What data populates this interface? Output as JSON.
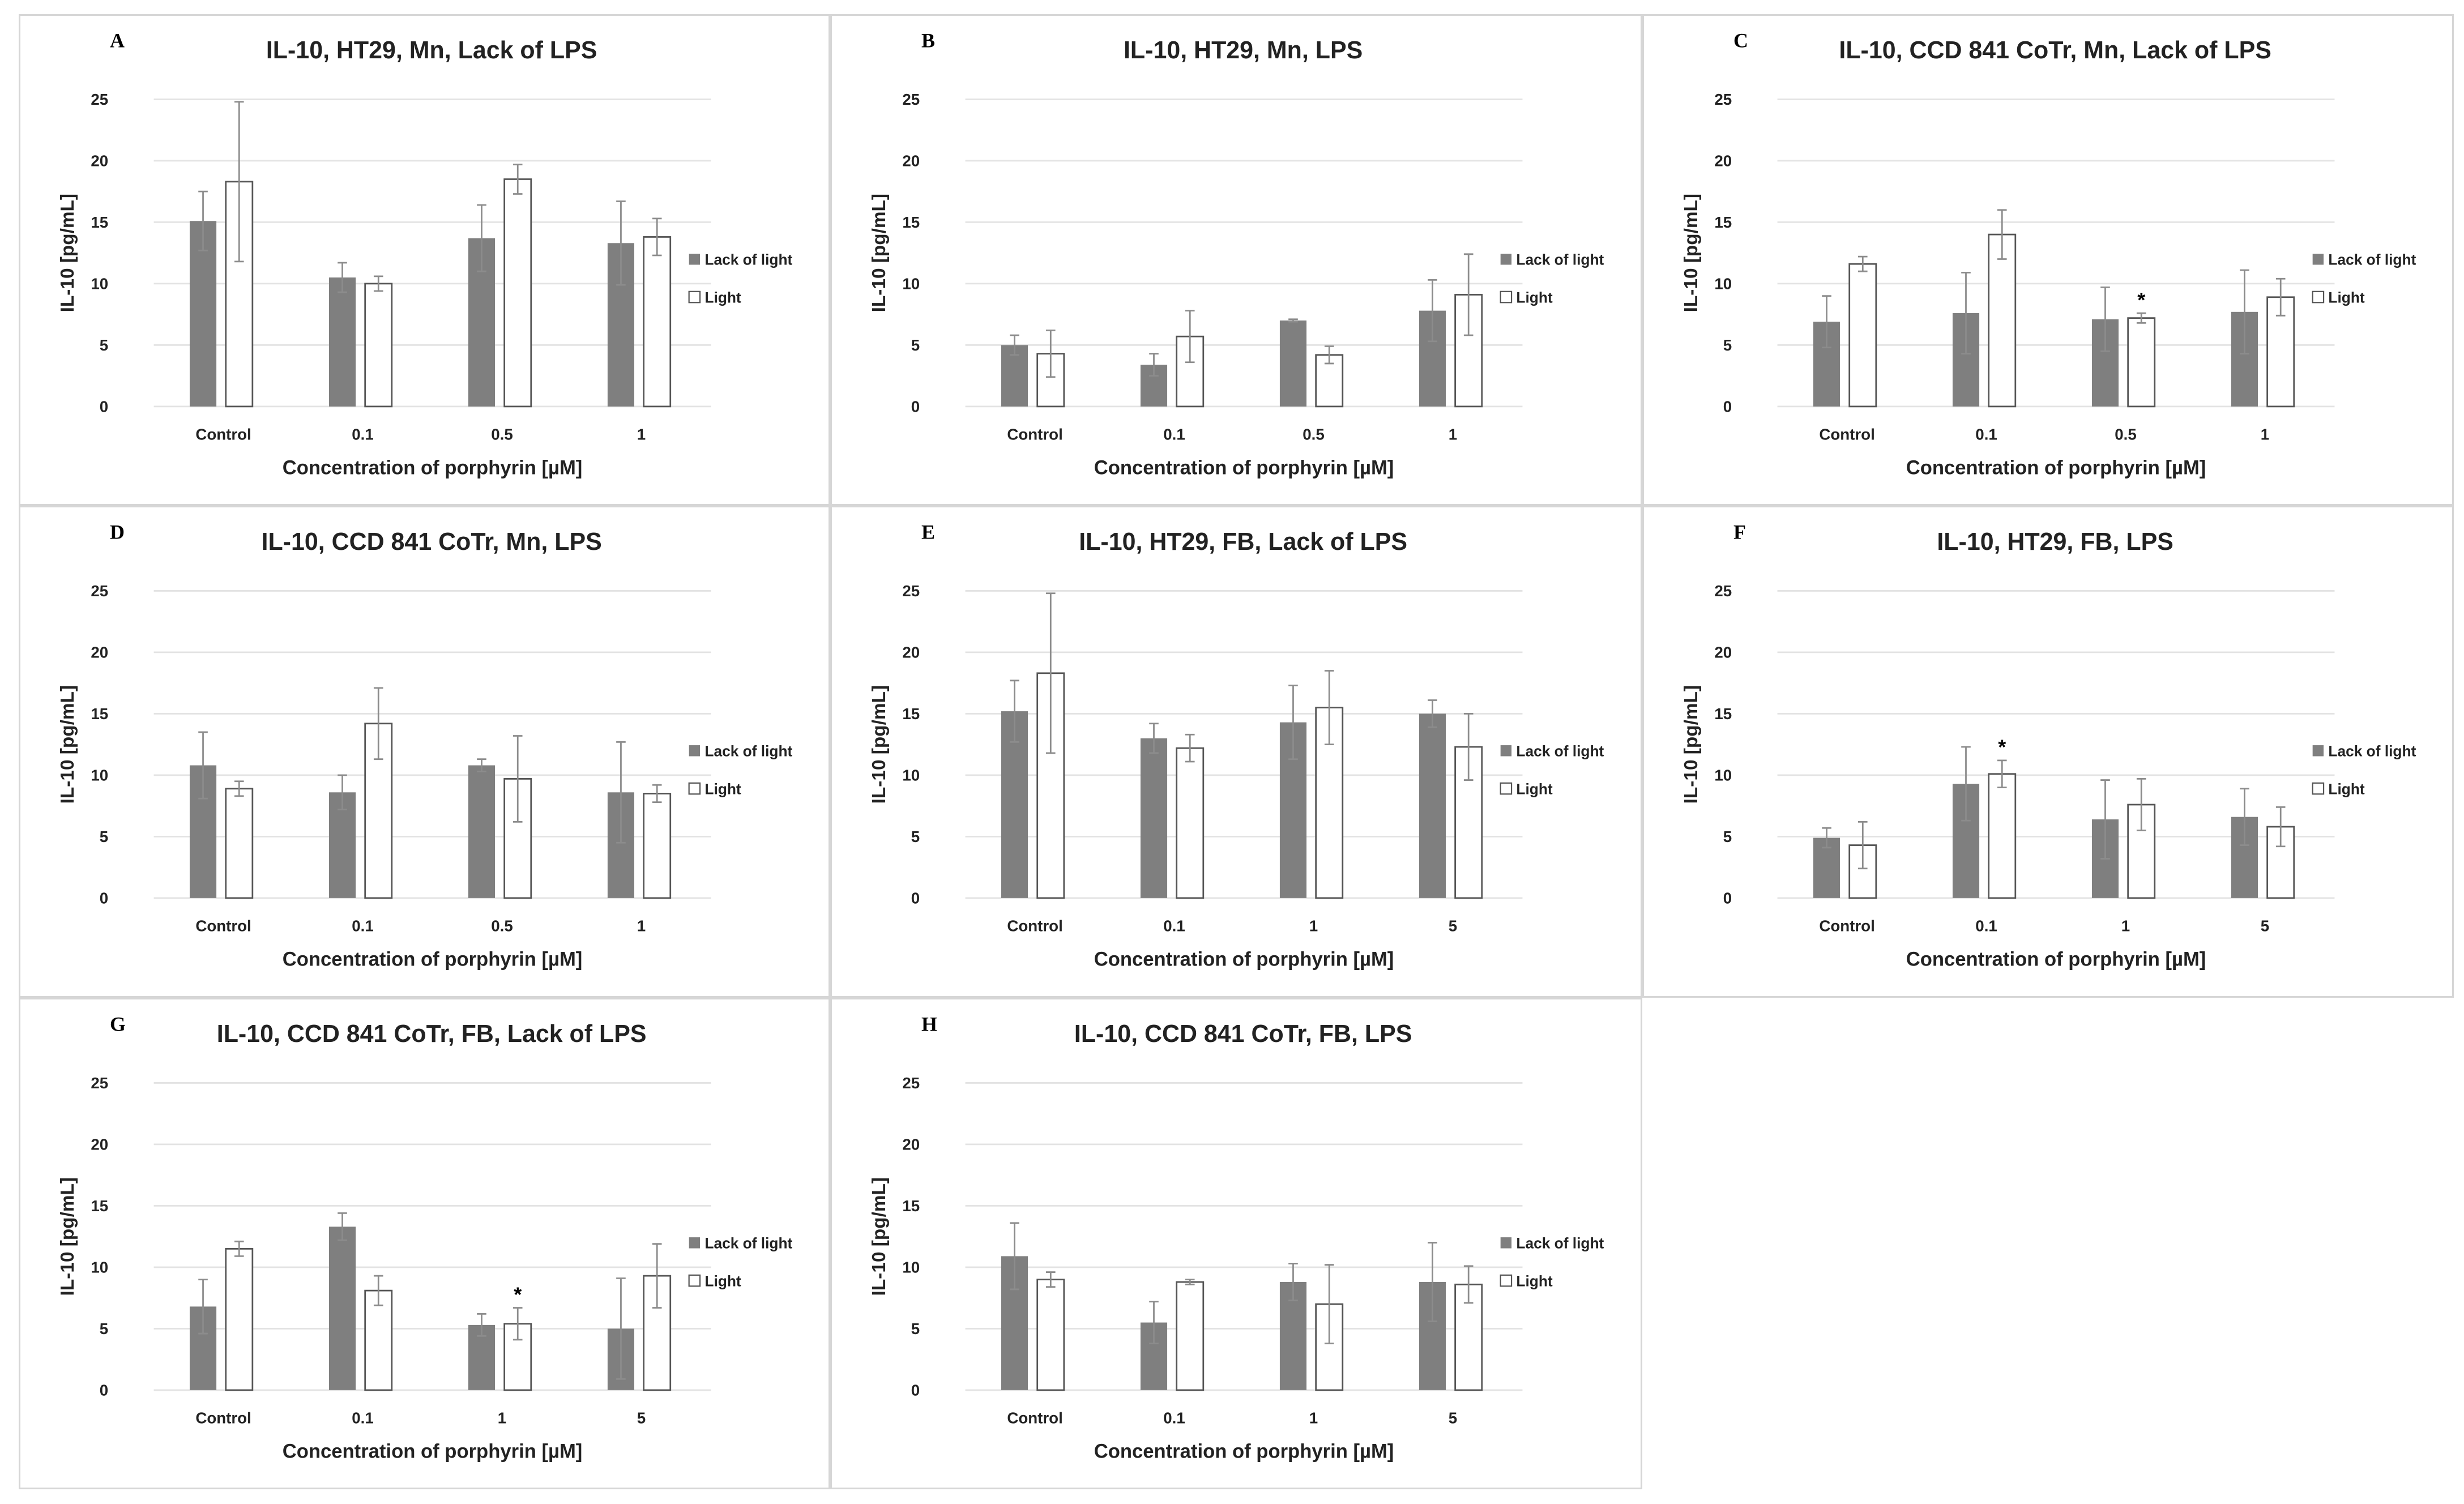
{
  "colors": {
    "lack": "#7f7f7f",
    "light": "#ffffff",
    "grid": "#e3e3e3",
    "err": "#8c8c8c"
  },
  "chart_data": [
    {
      "type": "bar",
      "letter": "A",
      "title": "IL-10, HT29, Mn, Lack of LPS",
      "xlabel": "Concentration of porphyrin [µM]",
      "ylabel": "IL-10 [pg/mL]",
      "ylim": [
        0,
        25
      ],
      "yticks": [
        0,
        5,
        10,
        15,
        20,
        25
      ],
      "categories": [
        "Control",
        "0.1",
        "0.5",
        "1"
      ],
      "series": [
        {
          "name": "Lack of light",
          "values": [
            15.1,
            10.5,
            13.7,
            13.3
          ],
          "errors": [
            2.4,
            1.2,
            2.7,
            3.4
          ]
        },
        {
          "name": "Light",
          "values": [
            18.3,
            10.0,
            18.5,
            13.8
          ],
          "errors": [
            6.5,
            0.6,
            1.2,
            1.5
          ]
        }
      ],
      "annotations": []
    },
    {
      "type": "bar",
      "letter": "B",
      "title": "IL-10, HT29, Mn, LPS",
      "xlabel": "Concentration of porphyrin [µM]",
      "ylabel": "IL-10 [pg/mL]",
      "ylim": [
        0,
        25
      ],
      "yticks": [
        0,
        5,
        10,
        15,
        20,
        25
      ],
      "categories": [
        "Control",
        "0.1",
        "0.5",
        "1"
      ],
      "series": [
        {
          "name": "Lack of light",
          "values": [
            5.0,
            3.4,
            7.0,
            7.8
          ],
          "errors": [
            0.8,
            0.9,
            0.1,
            2.5
          ]
        },
        {
          "name": "Light",
          "values": [
            4.3,
            5.7,
            4.2,
            9.1
          ],
          "errors": [
            1.9,
            2.1,
            0.7,
            3.3
          ]
        }
      ],
      "annotations": []
    },
    {
      "type": "bar",
      "letter": "C",
      "title": "IL-10, CCD 841 CoTr, Mn, Lack of LPS",
      "xlabel": "Concentration of porphyrin [µM]",
      "ylabel": "IL-10 [pg/mL]",
      "ylim": [
        0,
        25
      ],
      "yticks": [
        0,
        5,
        10,
        15,
        20,
        25
      ],
      "categories": [
        "Control",
        "0.1",
        "0.5",
        "1"
      ],
      "series": [
        {
          "name": "Lack of light",
          "values": [
            6.9,
            7.6,
            7.1,
            7.7
          ],
          "errors": [
            2.1,
            3.3,
            2.6,
            3.4
          ]
        },
        {
          "name": "Light",
          "values": [
            11.6,
            14.0,
            7.2,
            8.9
          ],
          "errors": [
            0.6,
            2.0,
            0.4,
            1.5
          ]
        }
      ],
      "annotations": [
        {
          "text": "*",
          "category": "0.5",
          "series": "Light"
        }
      ]
    },
    {
      "type": "bar",
      "letter": "D",
      "title": "IL-10, CCD 841 CoTr, Mn, LPS",
      "xlabel": "Concentration of porphyrin [µM]",
      "ylabel": "IL-10 [pg/mL]",
      "ylim": [
        0,
        25
      ],
      "yticks": [
        0,
        5,
        10,
        15,
        20,
        25
      ],
      "categories": [
        "Control",
        "0.1",
        "0.5",
        "1"
      ],
      "series": [
        {
          "name": "Lack of light",
          "values": [
            10.8,
            8.6,
            10.8,
            8.6
          ],
          "errors": [
            2.7,
            1.4,
            0.5,
            4.1
          ]
        },
        {
          "name": "Light",
          "values": [
            8.9,
            14.2,
            9.7,
            8.5
          ],
          "errors": [
            0.6,
            2.9,
            3.5,
            0.7
          ]
        }
      ],
      "annotations": []
    },
    {
      "type": "bar",
      "letter": "E",
      "title": "IL-10, HT29, FB, Lack of LPS",
      "xlabel": "Concentration of porphyrin [µM]",
      "ylabel": "IL-10 [pg/mL]",
      "ylim": [
        0,
        25
      ],
      "yticks": [
        0,
        5,
        10,
        15,
        20,
        25
      ],
      "categories": [
        "Control",
        "0.1",
        "1",
        "5"
      ],
      "series": [
        {
          "name": "Lack of light",
          "values": [
            15.2,
            13.0,
            14.3,
            15.0
          ],
          "errors": [
            2.5,
            1.2,
            3.0,
            1.1
          ]
        },
        {
          "name": "Light",
          "values": [
            18.3,
            12.2,
            15.5,
            12.3
          ],
          "errors": [
            6.5,
            1.1,
            3.0,
            2.7
          ]
        }
      ],
      "annotations": []
    },
    {
      "type": "bar",
      "letter": "F",
      "title": "IL-10, HT29, FB, LPS",
      "xlabel": "Concentration of porphyrin [µM]",
      "ylabel": "IL-10 [pg/mL]",
      "ylim": [
        0,
        25
      ],
      "yticks": [
        0,
        5,
        10,
        15,
        20,
        25
      ],
      "categories": [
        "Control",
        "0.1",
        "1",
        "5"
      ],
      "series": [
        {
          "name": "Lack of light",
          "values": [
            4.9,
            9.3,
            6.4,
            6.6
          ],
          "errors": [
            0.8,
            3.0,
            3.2,
            2.3
          ]
        },
        {
          "name": "Light",
          "values": [
            4.3,
            10.1,
            7.6,
            5.8
          ],
          "errors": [
            1.9,
            1.1,
            2.1,
            1.6
          ]
        }
      ],
      "annotations": [
        {
          "text": "*",
          "category": "0.1",
          "series": "Light"
        }
      ]
    },
    {
      "type": "bar",
      "letter": "G",
      "title": "IL-10, CCD 841 CoTr, FB, Lack of LPS",
      "xlabel": "Concentration of porphyrin [µM]",
      "ylabel": "IL-10 [pg/mL]",
      "ylim": [
        0,
        25
      ],
      "yticks": [
        0,
        5,
        10,
        15,
        20,
        25
      ],
      "categories": [
        "Control",
        "0.1",
        "1",
        "5"
      ],
      "series": [
        {
          "name": "Lack of light",
          "values": [
            6.8,
            13.3,
            5.3,
            5.0
          ],
          "errors": [
            2.2,
            1.1,
            0.9,
            4.1
          ]
        },
        {
          "name": "Light",
          "values": [
            11.5,
            8.1,
            5.4,
            9.3
          ],
          "errors": [
            0.6,
            1.2,
            1.3,
            2.6
          ]
        }
      ],
      "annotations": [
        {
          "text": "*",
          "category": "1",
          "series": "Light"
        }
      ]
    },
    {
      "type": "bar",
      "letter": "H",
      "title": "IL-10, CCD 841 CoTr, FB, LPS",
      "xlabel": "Concentration of porphyrin [µM]",
      "ylabel": "IL-10 [pg/mL]",
      "ylim": [
        0,
        25
      ],
      "yticks": [
        0,
        5,
        10,
        15,
        20,
        25
      ],
      "categories": [
        "Control",
        "0.1",
        "1",
        "5"
      ],
      "series": [
        {
          "name": "Lack of light",
          "values": [
            10.9,
            5.5,
            8.8,
            8.8
          ],
          "errors": [
            2.7,
            1.7,
            1.5,
            3.2
          ]
        },
        {
          "name": "Light",
          "values": [
            9.0,
            8.8,
            7.0,
            8.6
          ],
          "errors": [
            0.6,
            0.2,
            3.2,
            1.5
          ]
        }
      ],
      "annotations": []
    }
  ]
}
